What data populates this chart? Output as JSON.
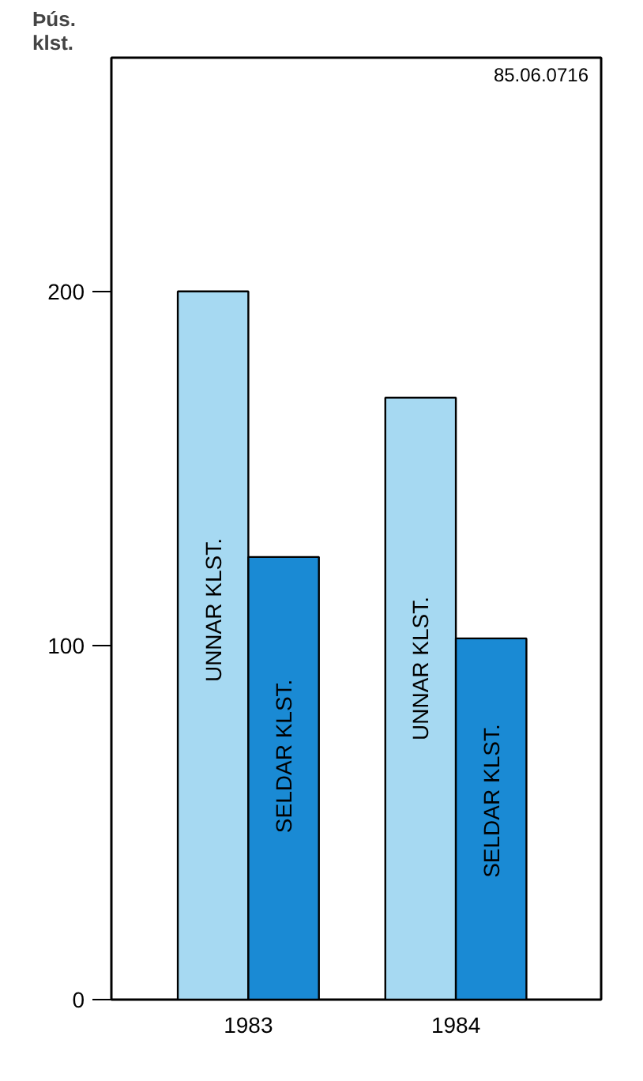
{
  "chart_data": {
    "type": "bar",
    "ylabel": "Þús. klst.",
    "annotations": [
      "85.06.0716"
    ],
    "categories": [
      "1983",
      "1984"
    ],
    "series": [
      {
        "name": "UNNAR KLST.",
        "color": "#a6d9f2",
        "values": [
          200,
          170
        ]
      },
      {
        "name": "SELDAR KLST.",
        "color": "#1a8ad4",
        "values": [
          125,
          102
        ]
      }
    ],
    "ylim": [
      0,
      266
    ],
    "yticks": [
      0,
      100,
      200
    ],
    "grid": false
  }
}
